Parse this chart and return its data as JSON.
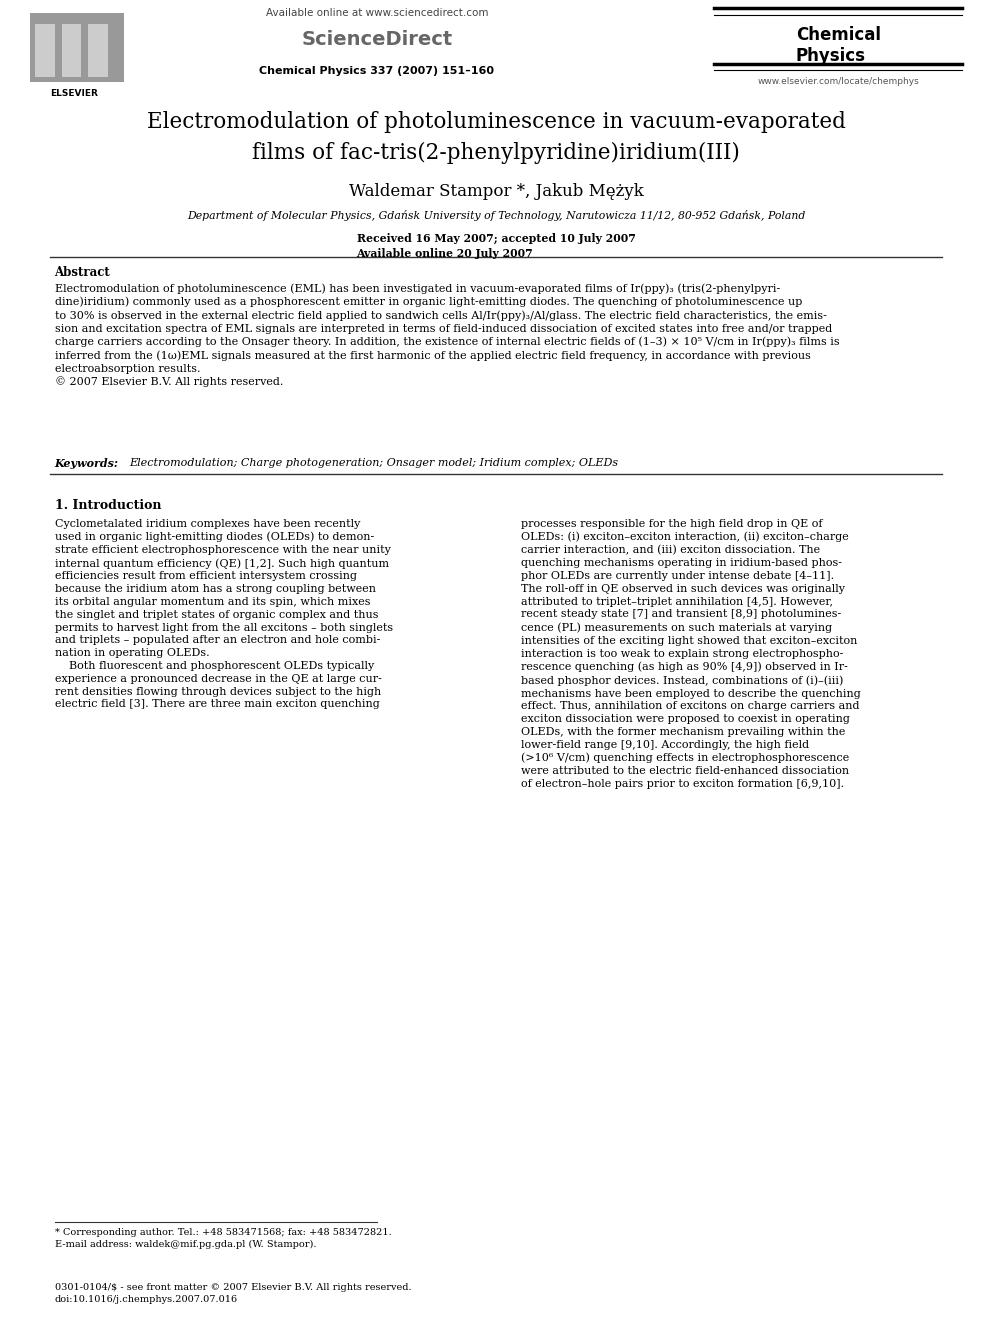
{
  "bg_color": "#ffffff",
  "page_width": 9.92,
  "page_height": 13.23,
  "header": {
    "available_online_text": "Available online at www.sciencedirect.com",
    "sciencedirect_text": "ScienceDirect",
    "journal_name": "Chemical\nPhysics",
    "journal_info": "Chemical Physics 337 (2007) 151–160",
    "website": "www.elsevier.com/locate/chemphys",
    "elsevier_label": "ELSEVIER"
  },
  "title_line1": "Electromodulation of photoluminescence in vacuum-evaporated",
  "title_line2_pre": "films of ",
  "title_line2_italic": "fac",
  "title_line2_post": "-tris(2-phenylpyridine)iridium(III)",
  "authors": "Waldemar Stampor *, Jakub Mężyk",
  "affiliation": "Department of Molecular Physics, Gdańsk University of Technology, Narutowicza 11/12, 80-952 Gdańsk, Poland",
  "dates": "Received 16 May 2007; accepted 10 July 2007\nAvailable online 20 July 2007",
  "abstract_title": "Abstract",
  "abstract_text": "Electromodulation of photoluminescence (EML) has been investigated in vacuum-evaporated films of Ir(ppy)₃ (tris(2-phenylpyri-\ndine)iridium) commonly used as a phosphorescent emitter in organic light-emitting diodes. The quenching of photoluminescence up\nto 30% is observed in the external electric field applied to sandwich cells Al/Ir(ppy)₃/Al/glass. The electric field characteristics, the emis-\nsion and excitation spectra of EML signals are interpreted in terms of field-induced dissociation of excited states into free and/or trapped\ncharge carriers according to the Onsager theory. In addition, the existence of internal electric fields of (1–3) × 10⁵ V/cm in Ir(ppy)₃ films is\ninferred from the (1ω)EML signals measured at the first harmonic of the applied electric field frequency, in accordance with previous\nelectroabsorption results.\n© 2007 Elsevier B.V. All rights reserved.",
  "keywords_label": "Keywords: ",
  "keywords_text": "Electromodulation; Charge photogeneration; Onsager model; Iridium complex; OLEDs",
  "section1_title": "1. Introduction",
  "section1_col1": "Cyclometalated iridium complexes have been recently\nused in organic light-emitting diodes (OLEDs) to demon-\nstrate efficient electrophosphorescence with the near unity\ninternal quantum efficiency (QE) [1,2]. Such high quantum\nefficiencies result from efficient intersystem crossing\nbecause the iridium atom has a strong coupling between\nits orbital angular momentum and its spin, which mixes\nthe singlet and triplet states of organic complex and thus\npermits to harvest light from the all excitons – both singlets\nand triplets – populated after an electron and hole combi-\nnation in operating OLEDs.\n    Both fluorescent and phosphorescent OLEDs typically\nexperience a pronounced decrease in the QE at large cur-\nrent densities flowing through devices subject to the high\nelectric field [3]. There are three main exciton quenching",
  "section1_col2": "processes responsible for the high field drop in QE of\nOLEDs: (i) exciton–exciton interaction, (ii) exciton–charge\ncarrier interaction, and (iii) exciton dissociation. The\nquenching mechanisms operating in iridium-based phos-\nphor OLEDs are currently under intense debate [4–11].\nThe roll-off in QE observed in such devices was originally\nattributed to triplet–triplet annihilation [4,5]. However,\nrecent steady state [7] and transient [8,9] photolumines-\ncence (PL) measurements on such materials at varying\nintensities of the exciting light showed that exciton–exciton\ninteraction is too weak to explain strong electrophospho-\nrescence quenching (as high as 90% [4,9]) observed in Ir-\nbased phosphor devices. Instead, combinations of (i)–(iii)\nmechanisms have been employed to describe the quenching\neffect. Thus, annihilation of excitons on charge carriers and\nexciton dissociation were proposed to coexist in operating\nOLEDs, with the former mechanism prevailing within the\nlower-field range [9,10]. Accordingly, the high field\n(>10⁶ V/cm) quenching effects in electrophosphorescence\nwere attributed to the electric field-enhanced dissociation\nof electron–hole pairs prior to exciton formation [6,9,10].",
  "footnote_author": "* Corresponding author. Tel.: +48 583471568; fax: +48 583472821.\nE-mail address: waldek@mif.pg.gda.pl (W. Stampor).",
  "footer_text": "0301-0104/$ - see front matter © 2007 Elsevier B.V. All rights reserved.\ndoi:10.1016/j.chemphys.2007.07.016"
}
